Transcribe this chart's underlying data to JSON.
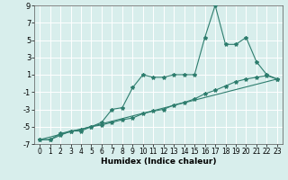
{
  "xlabel": "Humidex (Indice chaleur)",
  "background_color": "#d8eeec",
  "grid_color": "#ffffff",
  "line_color": "#2e7d6e",
  "xlim": [
    -0.5,
    23.5
  ],
  "ylim": [
    -7,
    9
  ],
  "xticks": [
    0,
    1,
    2,
    3,
    4,
    5,
    6,
    7,
    8,
    9,
    10,
    11,
    12,
    13,
    14,
    15,
    16,
    17,
    18,
    19,
    20,
    21,
    22,
    23
  ],
  "yticks": [
    -7,
    -5,
    -3,
    -1,
    1,
    3,
    5,
    7,
    9
  ],
  "line1_x": [
    0,
    1,
    2,
    3,
    4,
    5,
    6,
    7,
    8,
    9,
    10,
    11,
    12,
    13,
    14,
    15,
    16,
    17,
    18,
    19,
    20,
    21,
    22,
    23
  ],
  "line1_y": [
    -6.5,
    -6.5,
    -6.0,
    -5.5,
    -5.5,
    -5.0,
    -4.5,
    -3.0,
    -2.8,
    -0.5,
    1.0,
    0.7,
    0.7,
    1.0,
    1.0,
    1.0,
    5.3,
    9.0,
    4.5,
    4.5,
    5.3,
    2.5,
    1.0,
    0.5
  ],
  "line2_x": [
    0,
    1,
    2,
    3,
    4,
    5,
    6,
    7,
    8,
    9,
    10,
    11,
    12,
    13,
    14,
    15,
    16,
    17,
    18,
    19,
    20,
    21,
    22,
    23
  ],
  "line2_y": [
    -6.5,
    -6.5,
    -5.8,
    -5.5,
    -5.3,
    -5.0,
    -4.8,
    -4.5,
    -4.2,
    -4.0,
    -3.5,
    -3.2,
    -3.0,
    -2.5,
    -2.2,
    -1.8,
    -1.2,
    -0.8,
    -0.3,
    0.2,
    0.5,
    0.7,
    0.9,
    0.5
  ],
  "line3_x": [
    0,
    23
  ],
  "line3_y": [
    -6.5,
    0.5
  ],
  "marker": "*",
  "markersize": 3,
  "linewidth": 0.8,
  "xlabel_fontsize": 6.5,
  "tick_fontsize": 5.5,
  "ytick_fontsize": 6.0
}
